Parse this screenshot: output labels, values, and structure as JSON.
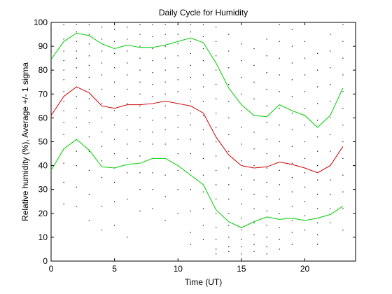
{
  "chart_data": {
    "type": "line",
    "title": "Daily Cycle for Humidity",
    "xlabel": "Time (UT)",
    "ylabel": "Relative humidity (%), Average +/- 1 sigma",
    "xlim": [
      0,
      24
    ],
    "ylim": [
      0,
      100
    ],
    "xticks": [
      0,
      5,
      10,
      15,
      20
    ],
    "yticks": [
      0,
      10,
      20,
      30,
      40,
      50,
      60,
      70,
      80,
      90,
      100
    ],
    "grid": false,
    "legend": "none",
    "x": [
      0,
      1,
      2,
      3,
      4,
      5,
      6,
      7,
      8,
      9,
      10,
      11,
      12,
      13,
      14,
      15,
      16,
      17,
      18,
      19,
      20,
      21,
      22,
      23
    ],
    "series": [
      {
        "role": "upper",
        "color": "#00cc00",
        "values": [
          84.5,
          92,
          95.5,
          94.5,
          91,
          89,
          90.5,
          89.5,
          89.5,
          90.5,
          92,
          93.5,
          91.5,
          83,
          72.5,
          65.5,
          61,
          60.5,
          65.5,
          63,
          61,
          56,
          61,
          72.5
        ]
      },
      {
        "role": "average",
        "color": "#cc0000",
        "values": [
          61,
          69,
          73,
          70.5,
          65,
          64,
          65.5,
          65.5,
          66,
          67,
          66,
          65,
          62,
          52,
          44.5,
          40,
          39,
          39.5,
          41.5,
          40.5,
          39,
          37,
          40,
          48
        ]
      },
      {
        "role": "lower",
        "color": "#00cc00",
        "values": [
          38,
          47,
          51,
          46.5,
          39.5,
          39,
          40.5,
          41,
          43,
          43,
          40,
          36,
          32,
          21.5,
          16.5,
          14,
          16.5,
          18.5,
          17.5,
          18,
          17,
          18,
          19.5,
          23
        ]
      }
    ],
    "scatter": {
      "color": "#000000",
      "points": [
        [
          0,
          97
        ],
        [
          0,
          88
        ],
        [
          0,
          79
        ],
        [
          0,
          71
        ],
        [
          0,
          65
        ],
        [
          0,
          55
        ],
        [
          0,
          47
        ],
        [
          0,
          40
        ],
        [
          0,
          31
        ],
        [
          0,
          20
        ],
        [
          1,
          99
        ],
        [
          1,
          93
        ],
        [
          1,
          88
        ],
        [
          1,
          84
        ],
        [
          1,
          80
        ],
        [
          1,
          76
        ],
        [
          1,
          71
        ],
        [
          1,
          67
        ],
        [
          1,
          63
        ],
        [
          1,
          58
        ],
        [
          1,
          53
        ],
        [
          1,
          47
        ],
        [
          1,
          41
        ],
        [
          1,
          33
        ],
        [
          1,
          24
        ],
        [
          2,
          99
        ],
        [
          2,
          96
        ],
        [
          2,
          92
        ],
        [
          2,
          88
        ],
        [
          2,
          85
        ],
        [
          2,
          81
        ],
        [
          2,
          77
        ],
        [
          2,
          73
        ],
        [
          2,
          69
        ],
        [
          2,
          64
        ],
        [
          2,
          60
        ],
        [
          2,
          56
        ],
        [
          2,
          51
        ],
        [
          2,
          46
        ],
        [
          2,
          40
        ],
        [
          2,
          31
        ],
        [
          2,
          23
        ],
        [
          3,
          99
        ],
        [
          3,
          95
        ],
        [
          3,
          91
        ],
        [
          3,
          86
        ],
        [
          3,
          82
        ],
        [
          3,
          77
        ],
        [
          3,
          72
        ],
        [
          3,
          68
        ],
        [
          3,
          63
        ],
        [
          3,
          58
        ],
        [
          3,
          52
        ],
        [
          3,
          46
        ],
        [
          3,
          38
        ],
        [
          3,
          28
        ],
        [
          3,
          17
        ],
        [
          4,
          98
        ],
        [
          4,
          93
        ],
        [
          4,
          88
        ],
        [
          4,
          83
        ],
        [
          4,
          78
        ],
        [
          4,
          72
        ],
        [
          4,
          66
        ],
        [
          4,
          60
        ],
        [
          4,
          54
        ],
        [
          4,
          48
        ],
        [
          4,
          42
        ],
        [
          4,
          35
        ],
        [
          4,
          23
        ],
        [
          4,
          13
        ],
        [
          5,
          97
        ],
        [
          5,
          92
        ],
        [
          5,
          87
        ],
        [
          5,
          81
        ],
        [
          5,
          75
        ],
        [
          5,
          69
        ],
        [
          5,
          63
        ],
        [
          5,
          57
        ],
        [
          5,
          51
        ],
        [
          5,
          45
        ],
        [
          5,
          39
        ],
        [
          5,
          33
        ],
        [
          5,
          25
        ],
        [
          5,
          15
        ],
        [
          6,
          98
        ],
        [
          6,
          93
        ],
        [
          6,
          88
        ],
        [
          6,
          83
        ],
        [
          6,
          78
        ],
        [
          6,
          72
        ],
        [
          6,
          66
        ],
        [
          6,
          61
        ],
        [
          6,
          55
        ],
        [
          6,
          49
        ],
        [
          6,
          43
        ],
        [
          6,
          37
        ],
        [
          6,
          26
        ],
        [
          6,
          10
        ],
        [
          7,
          99
        ],
        [
          7,
          95
        ],
        [
          7,
          90
        ],
        [
          7,
          85
        ],
        [
          7,
          80
        ],
        [
          7,
          75
        ],
        [
          7,
          70
        ],
        [
          7,
          65
        ],
        [
          7,
          60
        ],
        [
          7,
          55
        ],
        [
          7,
          50
        ],
        [
          7,
          44
        ],
        [
          7,
          37
        ],
        [
          7,
          30
        ],
        [
          7,
          21
        ],
        [
          8,
          99
        ],
        [
          8,
          94
        ],
        [
          8,
          89
        ],
        [
          8,
          84
        ],
        [
          8,
          79
        ],
        [
          8,
          74
        ],
        [
          8,
          69
        ],
        [
          8,
          64
        ],
        [
          8,
          59
        ],
        [
          8,
          54
        ],
        [
          8,
          49
        ],
        [
          8,
          43
        ],
        [
          8,
          37
        ],
        [
          8,
          30
        ],
        [
          8,
          22
        ],
        [
          9,
          99
        ],
        [
          9,
          95
        ],
        [
          9,
          90
        ],
        [
          9,
          85
        ],
        [
          9,
          80
        ],
        [
          9,
          75
        ],
        [
          9,
          70
        ],
        [
          9,
          65
        ],
        [
          9,
          60
        ],
        [
          9,
          55
        ],
        [
          9,
          49
        ],
        [
          9,
          43
        ],
        [
          9,
          36
        ],
        [
          9,
          27
        ],
        [
          9,
          17
        ],
        [
          10,
          99
        ],
        [
          10,
          95
        ],
        [
          10,
          91
        ],
        [
          10,
          86
        ],
        [
          10,
          81
        ],
        [
          10,
          76
        ],
        [
          10,
          71
        ],
        [
          10,
          66
        ],
        [
          10,
          61
        ],
        [
          10,
          56
        ],
        [
          10,
          51
        ],
        [
          10,
          45
        ],
        [
          10,
          38
        ],
        [
          10,
          30
        ],
        [
          10,
          20
        ],
        [
          11,
          99
        ],
        [
          11,
          96
        ],
        [
          11,
          92
        ],
        [
          11,
          87
        ],
        [
          11,
          82
        ],
        [
          11,
          77
        ],
        [
          11,
          72
        ],
        [
          11,
          67
        ],
        [
          11,
          62
        ],
        [
          11,
          57
        ],
        [
          11,
          51
        ],
        [
          11,
          45
        ],
        [
          11,
          38
        ],
        [
          11,
          30
        ],
        [
          11,
          21
        ],
        [
          11,
          12
        ],
        [
          11,
          7
        ],
        [
          12,
          99
        ],
        [
          12,
          94
        ],
        [
          12,
          89
        ],
        [
          12,
          84
        ],
        [
          12,
          78
        ],
        [
          12,
          73
        ],
        [
          12,
          67
        ],
        [
          12,
          61
        ],
        [
          12,
          55
        ],
        [
          12,
          49
        ],
        [
          12,
          43
        ],
        [
          12,
          36
        ],
        [
          12,
          29
        ],
        [
          12,
          22
        ],
        [
          12,
          15
        ],
        [
          12,
          9
        ],
        [
          13,
          98
        ],
        [
          13,
          92
        ],
        [
          13,
          86
        ],
        [
          13,
          80
        ],
        [
          13,
          74
        ],
        [
          13,
          68
        ],
        [
          13,
          62
        ],
        [
          13,
          56
        ],
        [
          13,
          50
        ],
        [
          13,
          44
        ],
        [
          13,
          38
        ],
        [
          13,
          32
        ],
        [
          13,
          26
        ],
        [
          13,
          20
        ],
        [
          13,
          14
        ],
        [
          13,
          9
        ],
        [
          13,
          5
        ],
        [
          13,
          3
        ],
        [
          14,
          95
        ],
        [
          14,
          88
        ],
        [
          14,
          81
        ],
        [
          14,
          74
        ],
        [
          14,
          67
        ],
        [
          14,
          60
        ],
        [
          14,
          53
        ],
        [
          14,
          46
        ],
        [
          14,
          39
        ],
        [
          14,
          32
        ],
        [
          14,
          26
        ],
        [
          14,
          20
        ],
        [
          14,
          15
        ],
        [
          14,
          10
        ],
        [
          14,
          6
        ],
        [
          14,
          4
        ],
        [
          15,
          91
        ],
        [
          15,
          84
        ],
        [
          15,
          77
        ],
        [
          15,
          70
        ],
        [
          15,
          63
        ],
        [
          15,
          56
        ],
        [
          15,
          49
        ],
        [
          15,
          42
        ],
        [
          15,
          36
        ],
        [
          15,
          30
        ],
        [
          15,
          24
        ],
        [
          15,
          18
        ],
        [
          15,
          13
        ],
        [
          15,
          9
        ],
        [
          15,
          6
        ],
        [
          15,
          3
        ],
        [
          16,
          89
        ],
        [
          16,
          82
        ],
        [
          16,
          75
        ],
        [
          16,
          68
        ],
        [
          16,
          61
        ],
        [
          16,
          54
        ],
        [
          16,
          47
        ],
        [
          16,
          40
        ],
        [
          16,
          34
        ],
        [
          16,
          28
        ],
        [
          16,
          22
        ],
        [
          16,
          16
        ],
        [
          16,
          11
        ],
        [
          16,
          7
        ],
        [
          16,
          4
        ],
        [
          17,
          93
        ],
        [
          17,
          86
        ],
        [
          17,
          79
        ],
        [
          17,
          72
        ],
        [
          17,
          65
        ],
        [
          17,
          58
        ],
        [
          17,
          51
        ],
        [
          17,
          45
        ],
        [
          17,
          39
        ],
        [
          17,
          33
        ],
        [
          17,
          27
        ],
        [
          17,
          21
        ],
        [
          17,
          15
        ],
        [
          17,
          10
        ],
        [
          17,
          6
        ],
        [
          17,
          3
        ],
        [
          18,
          99
        ],
        [
          18,
          92
        ],
        [
          18,
          85
        ],
        [
          18,
          78
        ],
        [
          18,
          71
        ],
        [
          18,
          64
        ],
        [
          18,
          57
        ],
        [
          18,
          50
        ],
        [
          18,
          44
        ],
        [
          18,
          38
        ],
        [
          18,
          32
        ],
        [
          18,
          26
        ],
        [
          18,
          20
        ],
        [
          18,
          14
        ],
        [
          18,
          9
        ],
        [
          18,
          5
        ],
        [
          19,
          97
        ],
        [
          19,
          90
        ],
        [
          19,
          83
        ],
        [
          19,
          76
        ],
        [
          19,
          69
        ],
        [
          19,
          62
        ],
        [
          19,
          55
        ],
        [
          19,
          48
        ],
        [
          19,
          41
        ],
        [
          19,
          35
        ],
        [
          19,
          29
        ],
        [
          19,
          23
        ],
        [
          19,
          17
        ],
        [
          19,
          12
        ],
        [
          19,
          7
        ],
        [
          20,
          99
        ],
        [
          20,
          92
        ],
        [
          20,
          85
        ],
        [
          20,
          78
        ],
        [
          20,
          71
        ],
        [
          20,
          64
        ],
        [
          20,
          57
        ],
        [
          20,
          50
        ],
        [
          20,
          43
        ],
        [
          20,
          37
        ],
        [
          20,
          31
        ],
        [
          20,
          25
        ],
        [
          20,
          19
        ],
        [
          20,
          13
        ],
        [
          21,
          87
        ],
        [
          21,
          80
        ],
        [
          21,
          73
        ],
        [
          21,
          66
        ],
        [
          21,
          59
        ],
        [
          21,
          52
        ],
        [
          21,
          46
        ],
        [
          21,
          40
        ],
        [
          21,
          34
        ],
        [
          21,
          28
        ],
        [
          21,
          22
        ],
        [
          21,
          16
        ],
        [
          21,
          11
        ],
        [
          21,
          7
        ],
        [
          22,
          95
        ],
        [
          22,
          88
        ],
        [
          22,
          81
        ],
        [
          22,
          74
        ],
        [
          22,
          67
        ],
        [
          22,
          60
        ],
        [
          22,
          53
        ],
        [
          22,
          46
        ],
        [
          22,
          40
        ],
        [
          22,
          34
        ],
        [
          22,
          28
        ],
        [
          22,
          22
        ],
        [
          22,
          16
        ],
        [
          23,
          99
        ],
        [
          23,
          92
        ],
        [
          23,
          85
        ],
        [
          23,
          78
        ],
        [
          23,
          71
        ],
        [
          23,
          64
        ],
        [
          23,
          57
        ],
        [
          23,
          50
        ],
        [
          23,
          43
        ],
        [
          23,
          36
        ],
        [
          23,
          29
        ],
        [
          23,
          22
        ],
        [
          23,
          13
        ]
      ]
    }
  }
}
